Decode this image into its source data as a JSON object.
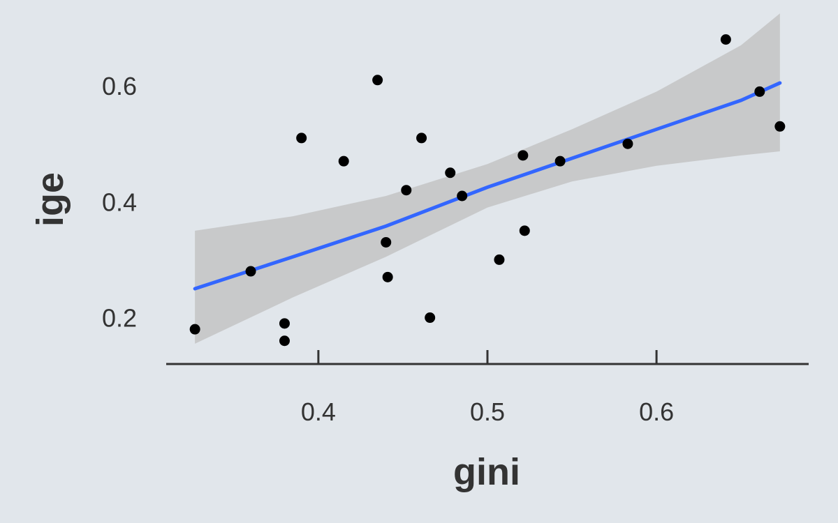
{
  "chart_data": {
    "type": "scatter",
    "title": "",
    "xlabel": "gini",
    "ylabel": "ige",
    "xlim": [
      0.31,
      0.69
    ],
    "ylim": [
      0.12,
      0.7
    ],
    "xticks": [
      0.4,
      0.5,
      0.6
    ],
    "yticks": [
      0.2,
      0.4,
      0.6
    ],
    "x_tick_labels": [
      "0.4",
      "0.5",
      "0.6"
    ],
    "y_tick_labels": [
      "0.2",
      "0.4",
      "0.6"
    ],
    "grid": false,
    "points": [
      {
        "x": 0.327,
        "y": 0.18
      },
      {
        "x": 0.36,
        "y": 0.28
      },
      {
        "x": 0.38,
        "y": 0.19
      },
      {
        "x": 0.38,
        "y": 0.16
      },
      {
        "x": 0.39,
        "y": 0.51
      },
      {
        "x": 0.415,
        "y": 0.47
      },
      {
        "x": 0.435,
        "y": 0.61
      },
      {
        "x": 0.44,
        "y": 0.33
      },
      {
        "x": 0.441,
        "y": 0.27
      },
      {
        "x": 0.452,
        "y": 0.42
      },
      {
        "x": 0.461,
        "y": 0.51
      },
      {
        "x": 0.466,
        "y": 0.2
      },
      {
        "x": 0.478,
        "y": 0.45
      },
      {
        "x": 0.485,
        "y": 0.41
      },
      {
        "x": 0.507,
        "y": 0.3
      },
      {
        "x": 0.521,
        "y": 0.48
      },
      {
        "x": 0.522,
        "y": 0.35
      },
      {
        "x": 0.543,
        "y": 0.47
      },
      {
        "x": 0.583,
        "y": 0.5
      },
      {
        "x": 0.641,
        "y": 0.68
      },
      {
        "x": 0.661,
        "y": 0.59
      },
      {
        "x": 0.673,
        "y": 0.53
      }
    ],
    "smooth": {
      "method": "linear",
      "color": "#3366ff",
      "x": [
        0.327,
        0.385,
        0.44,
        0.5,
        0.55,
        0.6,
        0.65,
        0.673
      ],
      "fit": [
        0.25,
        0.305,
        0.358,
        0.425,
        0.475,
        0.525,
        0.575,
        0.605
      ],
      "lower": [
        0.155,
        0.235,
        0.305,
        0.39,
        0.435,
        0.462,
        0.48,
        0.487
      ],
      "upper": [
        0.35,
        0.375,
        0.41,
        0.465,
        0.525,
        0.59,
        0.67,
        0.725
      ]
    },
    "point_color": "#000000",
    "band_color": "#bfbfbf"
  }
}
